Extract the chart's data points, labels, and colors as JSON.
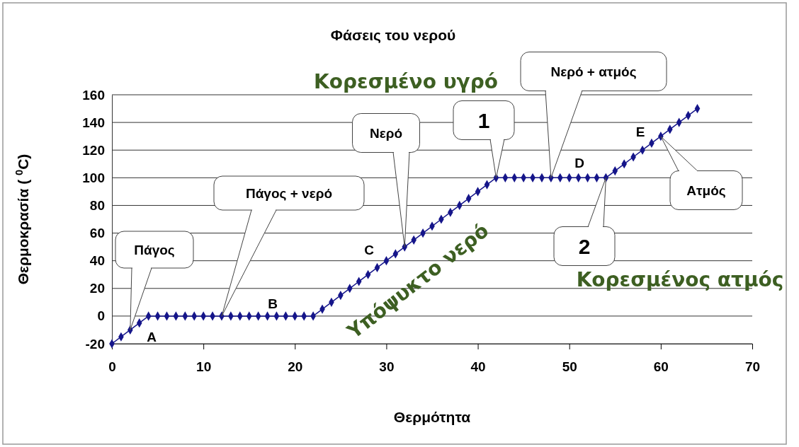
{
  "chart_data": {
    "type": "line",
    "title": "Φάσεις του νερού",
    "xlabel": "Θερμότητα",
    "ylabel": "Θερμοκρασία ( $^{0}$C)",
    "x": [
      0,
      1,
      2,
      3,
      4,
      5,
      6,
      7,
      8,
      9,
      10,
      11,
      12,
      13,
      14,
      15,
      16,
      17,
      18,
      19,
      20,
      21,
      22,
      23,
      24,
      25,
      26,
      27,
      28,
      29,
      30,
      31,
      32,
      33,
      34,
      35,
      36,
      37,
      38,
      39,
      40,
      41,
      42,
      43,
      44,
      45,
      46,
      47,
      48,
      49,
      50,
      51,
      52,
      53,
      54,
      55,
      56,
      57,
      58,
      59,
      60,
      61,
      62,
      63,
      64
    ],
    "series": [
      {
        "color": "#15158a",
        "values": [
          -20,
          -15,
          -10,
          -5,
          0,
          0,
          0,
          0,
          0,
          0,
          0,
          0,
          0,
          0,
          0,
          0,
          0,
          0,
          0,
          0,
          0,
          0,
          0,
          5,
          10,
          15,
          20,
          25,
          30,
          35,
          40,
          45,
          50,
          55,
          60,
          65,
          70,
          75,
          80,
          85,
          90,
          95,
          100,
          100,
          100,
          100,
          100,
          100,
          100,
          100,
          100,
          100,
          100,
          100,
          100,
          105,
          110,
          115,
          120,
          125,
          130,
          135,
          140,
          145,
          150
        ]
      }
    ],
    "xlim": [
      0,
      70
    ],
    "xticks": [
      0,
      10,
      20,
      30,
      40,
      50,
      60,
      70
    ],
    "ylim": [
      -20,
      160
    ],
    "yticks": [
      -20,
      0,
      20,
      40,
      60,
      80,
      100,
      120,
      140,
      160
    ],
    "grid": "y",
    "marker": "diamond",
    "line_style": "solid",
    "annotations": [
      {
        "text": "Πάγος",
        "x": 2,
        "y": -10
      },
      "Πάγος + νερό",
      {
        "text": "Νερό",
        "x": 32,
        "y": 50
      },
      {
        "text": "1",
        "x": 42,
        "y": 100
      },
      {
        "text": "Νερό + ατμός",
        "x": 48,
        "y": 100
      },
      {
        "text": "2",
        "x": 54,
        "y": 100
      },
      "Ατμός",
      "A",
      "B",
      "C",
      "D",
      "E",
      "Κορεσμένο υγρό",
      "Υπόψυκτο νερό",
      "Κορεσμένος ατμός"
    ]
  }
}
